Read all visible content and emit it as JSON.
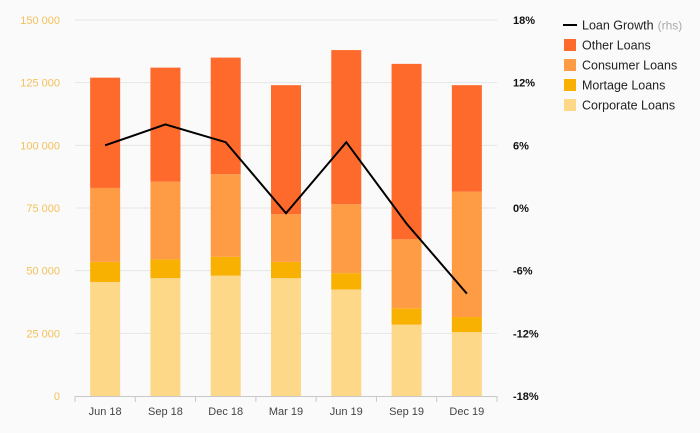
{
  "chart_data": {
    "type": "bar",
    "stacked": true,
    "categories": [
      "Jun 18",
      "Sep 18",
      "Dec 18",
      "Mar 19",
      "Jun 19",
      "Sep 19",
      "Dec 19"
    ],
    "series": [
      {
        "name": "Corporate Loans",
        "color": "#fdd888",
        "values": [
          45500,
          47000,
          48000,
          47000,
          42500,
          28500,
          25500
        ]
      },
      {
        "name": "Mortage Loans",
        "color": "#f8b100",
        "values": [
          8000,
          7500,
          7500,
          6500,
          6500,
          6500,
          6000
        ]
      },
      {
        "name": "Consumer Loans",
        "color": "#fe9b45",
        "values": [
          29500,
          31000,
          33000,
          19000,
          27500,
          27500,
          50000
        ]
      },
      {
        "name": "Other Loans",
        "color": "#fe6a2b",
        "values": [
          44000,
          45500,
          46500,
          51500,
          61500,
          70000,
          42500
        ]
      }
    ],
    "line": {
      "name": "Loan Growth",
      "note": "(rhs)",
      "color": "#000000",
      "values": [
        6.0,
        8.0,
        6.3,
        -0.5,
        6.3,
        -1.5,
        -8.2
      ]
    },
    "ylim_left": [
      0,
      150000
    ],
    "ylim_right": [
      -18,
      18
    ],
    "left_ticks": [
      "0",
      "25 000",
      "50 000",
      "75 000",
      "100 000",
      "125 000",
      "150 000"
    ],
    "right_ticks": [
      "-18%",
      "-12%",
      "-6%",
      "0%",
      "6%",
      "12%",
      "18%"
    ],
    "legend": [
      {
        "label": "Loan Growth",
        "note": "(rhs)",
        "kind": "line",
        "color": "#000000"
      },
      {
        "label": "Other Loans",
        "kind": "box",
        "color": "#fe6a2b"
      },
      {
        "label": "Consumer Loans",
        "kind": "box",
        "color": "#fe9b45"
      },
      {
        "label": "Mortage Loans",
        "kind": "box",
        "color": "#f8b100"
      },
      {
        "label": "Corporate Loans",
        "kind": "box",
        "color": "#fdd888"
      }
    ],
    "legend_position": "right",
    "grid": true
  }
}
